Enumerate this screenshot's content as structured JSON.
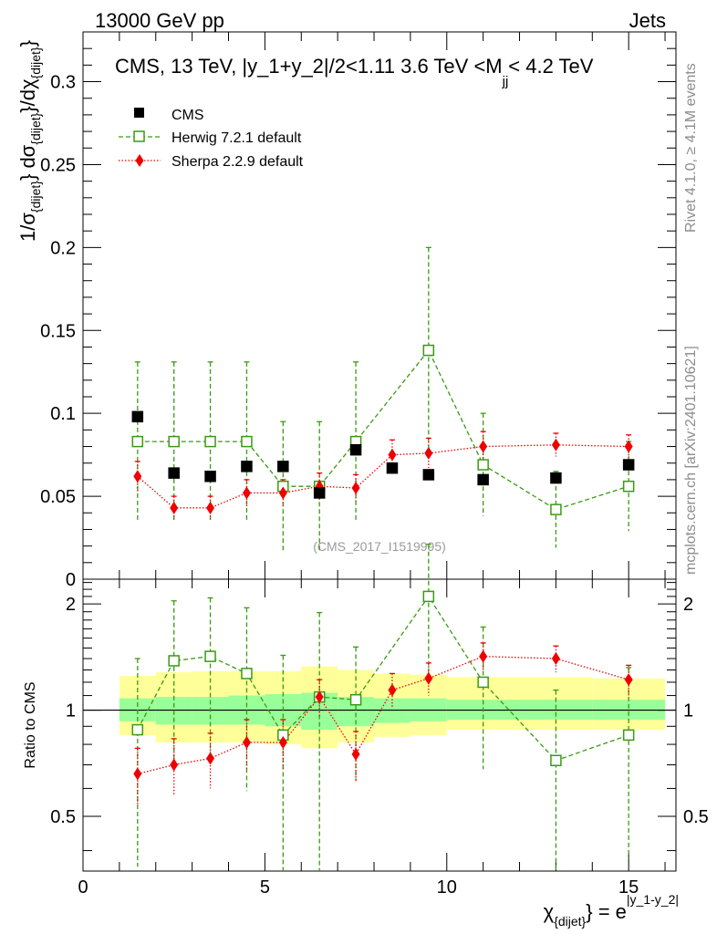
{
  "header": {
    "energy_label": "13000 GeV pp",
    "process_label": "Jets"
  },
  "side_labels": {
    "rivet": "Rivet 4.1.0, ≥ 4.1M events",
    "mcplots": "mcplots.cern.ch [arXiv:2401.10621]"
  },
  "colors": {
    "cms": "#000000",
    "herwig": "#3a9a12",
    "sherpa": "#ee0000",
    "band_inner": "#99ff99",
    "band_outer": "#ffff99"
  },
  "chart_data": [
    {
      "type": "scatter",
      "panel": "main",
      "title": "CMS, 13 TeV, |y_1+y_2|/2<1.11 3.6 TeV <M_jj< 4.2 TeV",
      "title_parts": {
        "main": "CMS, 13 TeV, |y_1+y_2|/2<1.11 3.6 TeV <M",
        "sub": "jj",
        "tail": "< 4.2 TeV"
      },
      "ylabel": "1/σ_{dijet} dσ_{dijet}/dχ_{dijet}",
      "ylabel_parts": {
        "p1": "1/σ",
        "s1": "{dijet}",
        "p2": "} dσ",
        "s2": "{dijet}",
        "p3": "}/dχ",
        "s3": "{dijet}",
        "p4": "}"
      },
      "xlim": [
        0,
        16.3
      ],
      "ylim": [
        0,
        0.33
      ],
      "yticks": [
        0,
        0.05,
        0.1,
        0.15,
        0.2,
        0.25,
        0.3
      ],
      "ytick_labels": [
        "0",
        "0.05",
        "0.1",
        "0.15",
        "0.2",
        "0.25",
        "0.3"
      ],
      "watermark": "(CMS_2017_I1519995)",
      "x": [
        1.5,
        2.5,
        3.5,
        4.5,
        5.5,
        6.5,
        7.5,
        8.5,
        9.5,
        11,
        13,
        15
      ],
      "series": [
        {
          "name": "CMS",
          "marker": "square",
          "values": [
            0.098,
            0.064,
            0.062,
            0.068,
            0.068,
            0.052,
            0.078,
            0.067,
            0.063,
            0.06,
            0.061,
            0.069
          ],
          "errors": [
            0.002,
            0.002,
            0.002,
            0.002,
            0.002,
            0.002,
            0.002,
            0.002,
            0.002,
            0.002,
            0.002,
            0.002
          ]
        },
        {
          "name": "Herwig 7.2.1 default",
          "marker": "open-square",
          "line": "dashed",
          "values": [
            0.083,
            0.083,
            0.083,
            0.083,
            0.056,
            0.056,
            0.083,
            null,
            0.138,
            0.069,
            0.042,
            0.056
          ],
          "errors": [
            0.048,
            0.048,
            0.048,
            0.048,
            0.039,
            0.039,
            0.048,
            null,
            0.062,
            0.031,
            0.023,
            0.027
          ]
        },
        {
          "name": "Sherpa 2.2.9 default",
          "marker": "diamond",
          "line": "dotted",
          "values": [
            0.062,
            0.043,
            0.043,
            0.052,
            0.052,
            0.056,
            0.055,
            0.075,
            0.076,
            0.08,
            0.081,
            0.08
          ],
          "errors": [
            0.009,
            0.007,
            0.007,
            0.008,
            0.008,
            0.008,
            0.008,
            0.009,
            0.009,
            0.009,
            0.007,
            0.007
          ]
        }
      ],
      "legend_position": "top-left"
    },
    {
      "type": "scatter",
      "panel": "ratio",
      "ylabel": "Ratio to CMS",
      "xlabel": "χ_{dijet} = e^{|y_1-y_2|}",
      "xlabel_parts": {
        "main": "χ",
        "sub": "{dijet}",
        "mid": "} = e",
        "sup": "|y_1-y_2|"
      },
      "xlim": [
        0,
        16.3
      ],
      "ylim": [
        0.35,
        2.35
      ],
      "xticks": [
        0,
        5,
        10,
        15
      ],
      "xtick_labels": [
        "0",
        "5",
        "10",
        "15"
      ],
      "yticks": [
        0.5,
        1,
        2
      ],
      "ytick_labels": [
        "0.5",
        "1",
        "2"
      ],
      "reference_line": 1,
      "bins": [
        {
          "lo": 1,
          "hi": 2,
          "inner": [
            0.93,
            1.08
          ],
          "outer": [
            0.85,
            1.25
          ]
        },
        {
          "lo": 2,
          "hi": 3,
          "inner": [
            0.91,
            1.09
          ],
          "outer": [
            0.81,
            1.28
          ]
        },
        {
          "lo": 3,
          "hi": 4,
          "inner": [
            0.91,
            1.09
          ],
          "outer": [
            0.81,
            1.29
          ]
        },
        {
          "lo": 4,
          "hi": 5,
          "inner": [
            0.91,
            1.1
          ],
          "outer": [
            0.81,
            1.29
          ]
        },
        {
          "lo": 5,
          "hi": 6,
          "inner": [
            0.9,
            1.11
          ],
          "outer": [
            0.8,
            1.29
          ]
        },
        {
          "lo": 6,
          "hi": 7,
          "inner": [
            0.88,
            1.12
          ],
          "outer": [
            0.78,
            1.33
          ]
        },
        {
          "lo": 7,
          "hi": 8,
          "inner": [
            0.9,
            1.09
          ],
          "outer": [
            0.81,
            1.3
          ]
        },
        {
          "lo": 8,
          "hi": 9,
          "inner": [
            0.92,
            1.08
          ],
          "outer": [
            0.84,
            1.27
          ]
        },
        {
          "lo": 9,
          "hi": 10,
          "inner": [
            0.93,
            1.08
          ],
          "outer": [
            0.85,
            1.26
          ]
        },
        {
          "lo": 10,
          "hi": 12,
          "inner": [
            0.94,
            1.07
          ],
          "outer": [
            0.88,
            1.24
          ]
        },
        {
          "lo": 12,
          "hi": 14,
          "inner": [
            0.94,
            1.07
          ],
          "outer": [
            0.88,
            1.24
          ]
        },
        {
          "lo": 14,
          "hi": 16,
          "inner": [
            0.94,
            1.07
          ],
          "outer": [
            0.88,
            1.23
          ]
        }
      ],
      "x": [
        1.5,
        2.5,
        3.5,
        4.5,
        5.5,
        6.5,
        7.5,
        8.5,
        9.5,
        11,
        13,
        15
      ],
      "series": [
        {
          "name": "Herwig 7.2.1 default",
          "values": [
            0.88,
            1.38,
            1.42,
            1.27,
            0.85,
            1.09,
            1.07,
            null,
            2.1,
            1.2,
            0.72,
            0.85
          ],
          "errors": [
            0.52,
            0.66,
            0.66,
            0.68,
            0.58,
            0.8,
            0.44,
            null,
            0.85,
            0.52,
            0.42,
            0.47
          ]
        },
        {
          "name": "Sherpa 2.2.9 default",
          "values": [
            0.66,
            0.7,
            0.73,
            0.81,
            0.81,
            1.09,
            0.75,
            1.14,
            1.23,
            1.42,
            1.4,
            1.22
          ],
          "errors": [
            0.12,
            0.13,
            0.13,
            0.13,
            0.13,
            0.13,
            0.12,
            0.13,
            0.13,
            0.13,
            0.12,
            0.12
          ]
        }
      ]
    }
  ]
}
